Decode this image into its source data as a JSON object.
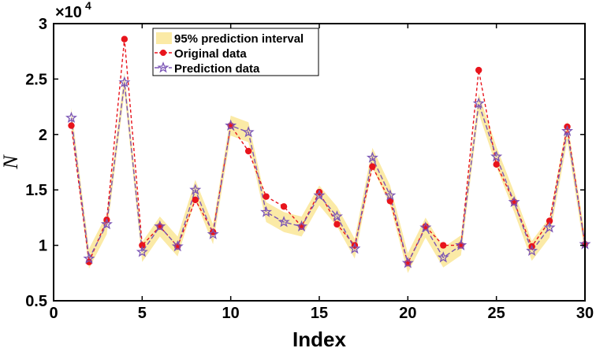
{
  "chart_data": {
    "type": "line",
    "xlabel": "Index",
    "ylabel": "N",
    "xlim": [
      0,
      30
    ],
    "ylim": [
      0.5,
      3
    ],
    "x_ticks": [
      0,
      5,
      10,
      15,
      20,
      25,
      30
    ],
    "y_ticks": [
      0.5,
      1,
      1.5,
      2,
      2.5,
      3
    ],
    "x_tick_labels": [
      "0",
      "5",
      "10",
      "15",
      "20",
      "25",
      "30"
    ],
    "y_tick_labels": [
      "0.5",
      "1",
      "1.5",
      "2",
      "2.5",
      "3"
    ],
    "y_exponent_base": "×10",
    "y_exponent_power": "4",
    "grid": false,
    "legend_position": "top-center",
    "legend": [
      "95% prediction interval",
      "Original data",
      "Prediction data"
    ],
    "x": [
      1,
      2,
      3,
      4,
      5,
      6,
      7,
      8,
      9,
      10,
      11,
      12,
      13,
      14,
      15,
      16,
      17,
      18,
      19,
      20,
      21,
      22,
      23,
      24,
      25,
      26,
      27,
      28,
      29,
      30
    ],
    "series": [
      {
        "name": "Original data",
        "color": "#e8141c",
        "marker": "circle",
        "values": [
          2.08,
          0.85,
          1.23,
          2.86,
          1.0,
          1.17,
          0.99,
          1.41,
          1.12,
          2.08,
          1.85,
          1.44,
          1.35,
          1.17,
          1.48,
          1.19,
          1.0,
          1.71,
          1.4,
          0.84,
          1.17,
          1.0,
          1.0,
          2.58,
          1.73,
          1.39,
          0.99,
          1.22,
          2.07,
          1.01
        ]
      },
      {
        "name": "Prediction data",
        "color": "#7b55b5",
        "marker": "star",
        "values": [
          2.15,
          0.88,
          1.19,
          2.47,
          0.94,
          1.17,
          0.99,
          1.5,
          1.1,
          2.08,
          2.02,
          1.3,
          1.21,
          1.17,
          1.45,
          1.26,
          0.97,
          1.79,
          1.45,
          0.84,
          1.16,
          0.89,
          1.0,
          2.28,
          1.8,
          1.39,
          0.95,
          1.16,
          2.03,
          1.01
        ]
      }
    ],
    "interval": {
      "name": "95% prediction interval",
      "color": "#fbeaa6",
      "half_width": 0.09
    }
  }
}
